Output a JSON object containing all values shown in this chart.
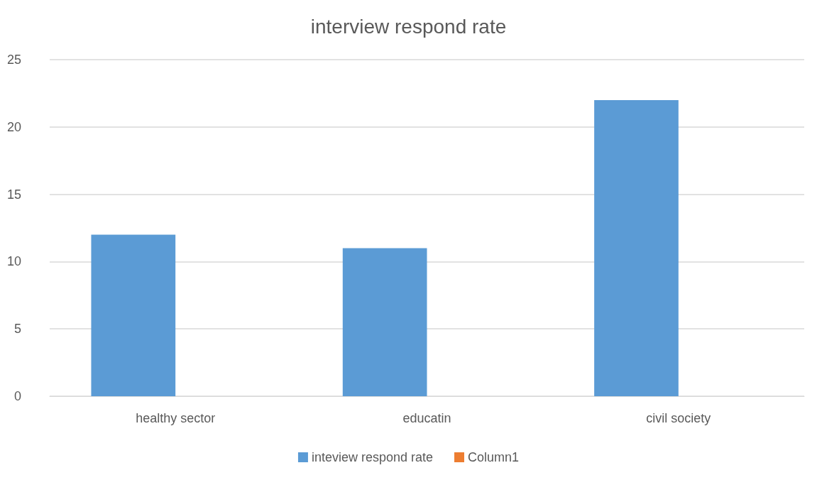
{
  "chart_data": {
    "type": "bar",
    "title": "interview respond rate",
    "categories": [
      "healthy sector",
      "educatin",
      "civil society"
    ],
    "series": [
      {
        "name": "inteview respond rate",
        "color": "#5b9bd5",
        "values": [
          12,
          11,
          22
        ]
      },
      {
        "name": "Column1",
        "color": "#ed7d31",
        "values": [
          null,
          null,
          null
        ]
      }
    ],
    "ylim": [
      0,
      25
    ],
    "yticks": [
      0,
      5,
      10,
      15,
      20,
      25
    ],
    "grid": "y",
    "legend": "bottom"
  }
}
